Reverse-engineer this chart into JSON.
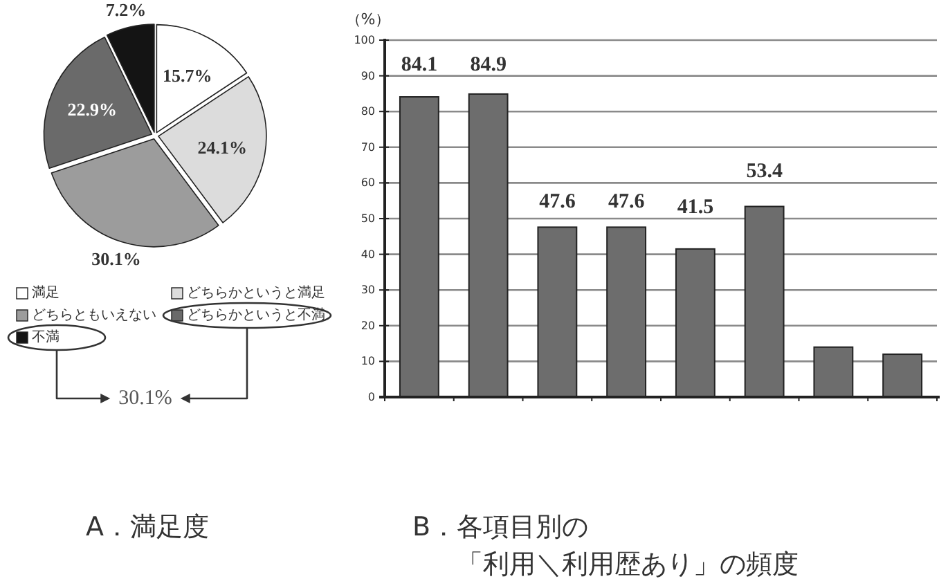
{
  "chart_data": [
    {
      "type": "pie",
      "title": "A．満足度",
      "categories": [
        "満足",
        "どちらかというと満足",
        "どちらともいえない",
        "どちらかというと不満",
        "不満"
      ],
      "values": [
        15.7,
        24.1,
        30.1,
        22.9,
        7.2
      ],
      "colors": [
        "#ffffff",
        "#dcdcdc",
        "#9c9c9c",
        "#6a6a6a",
        "#141414"
      ],
      "value_labels": [
        "15.7%",
        "24.1%",
        "30.1%",
        "22.9%",
        "7.2%"
      ],
      "legend": "bottom",
      "annotations": [
        "30.1%"
      ]
    },
    {
      "type": "bar",
      "title": "B．各項目別の「利用＼利用歴あり」の頻度",
      "ylabel": "（%）",
      "categories": [
        null,
        null,
        null,
        null,
        null,
        null,
        null,
        null
      ],
      "values": [
        84.1,
        84.9,
        47.6,
        47.6,
        41.5,
        53.4,
        14,
        12
      ],
      "value_labels": [
        "84.1",
        "84.9",
        "47.6",
        "47.6",
        "41.5",
        "53.4",
        null,
        null
      ],
      "color": "#6d6d6d",
      "ylim": [
        0,
        100
      ],
      "yticks": [
        0,
        10,
        20,
        30,
        40,
        50,
        60,
        70,
        80,
        90,
        100
      ],
      "grid": "y"
    }
  ]
}
